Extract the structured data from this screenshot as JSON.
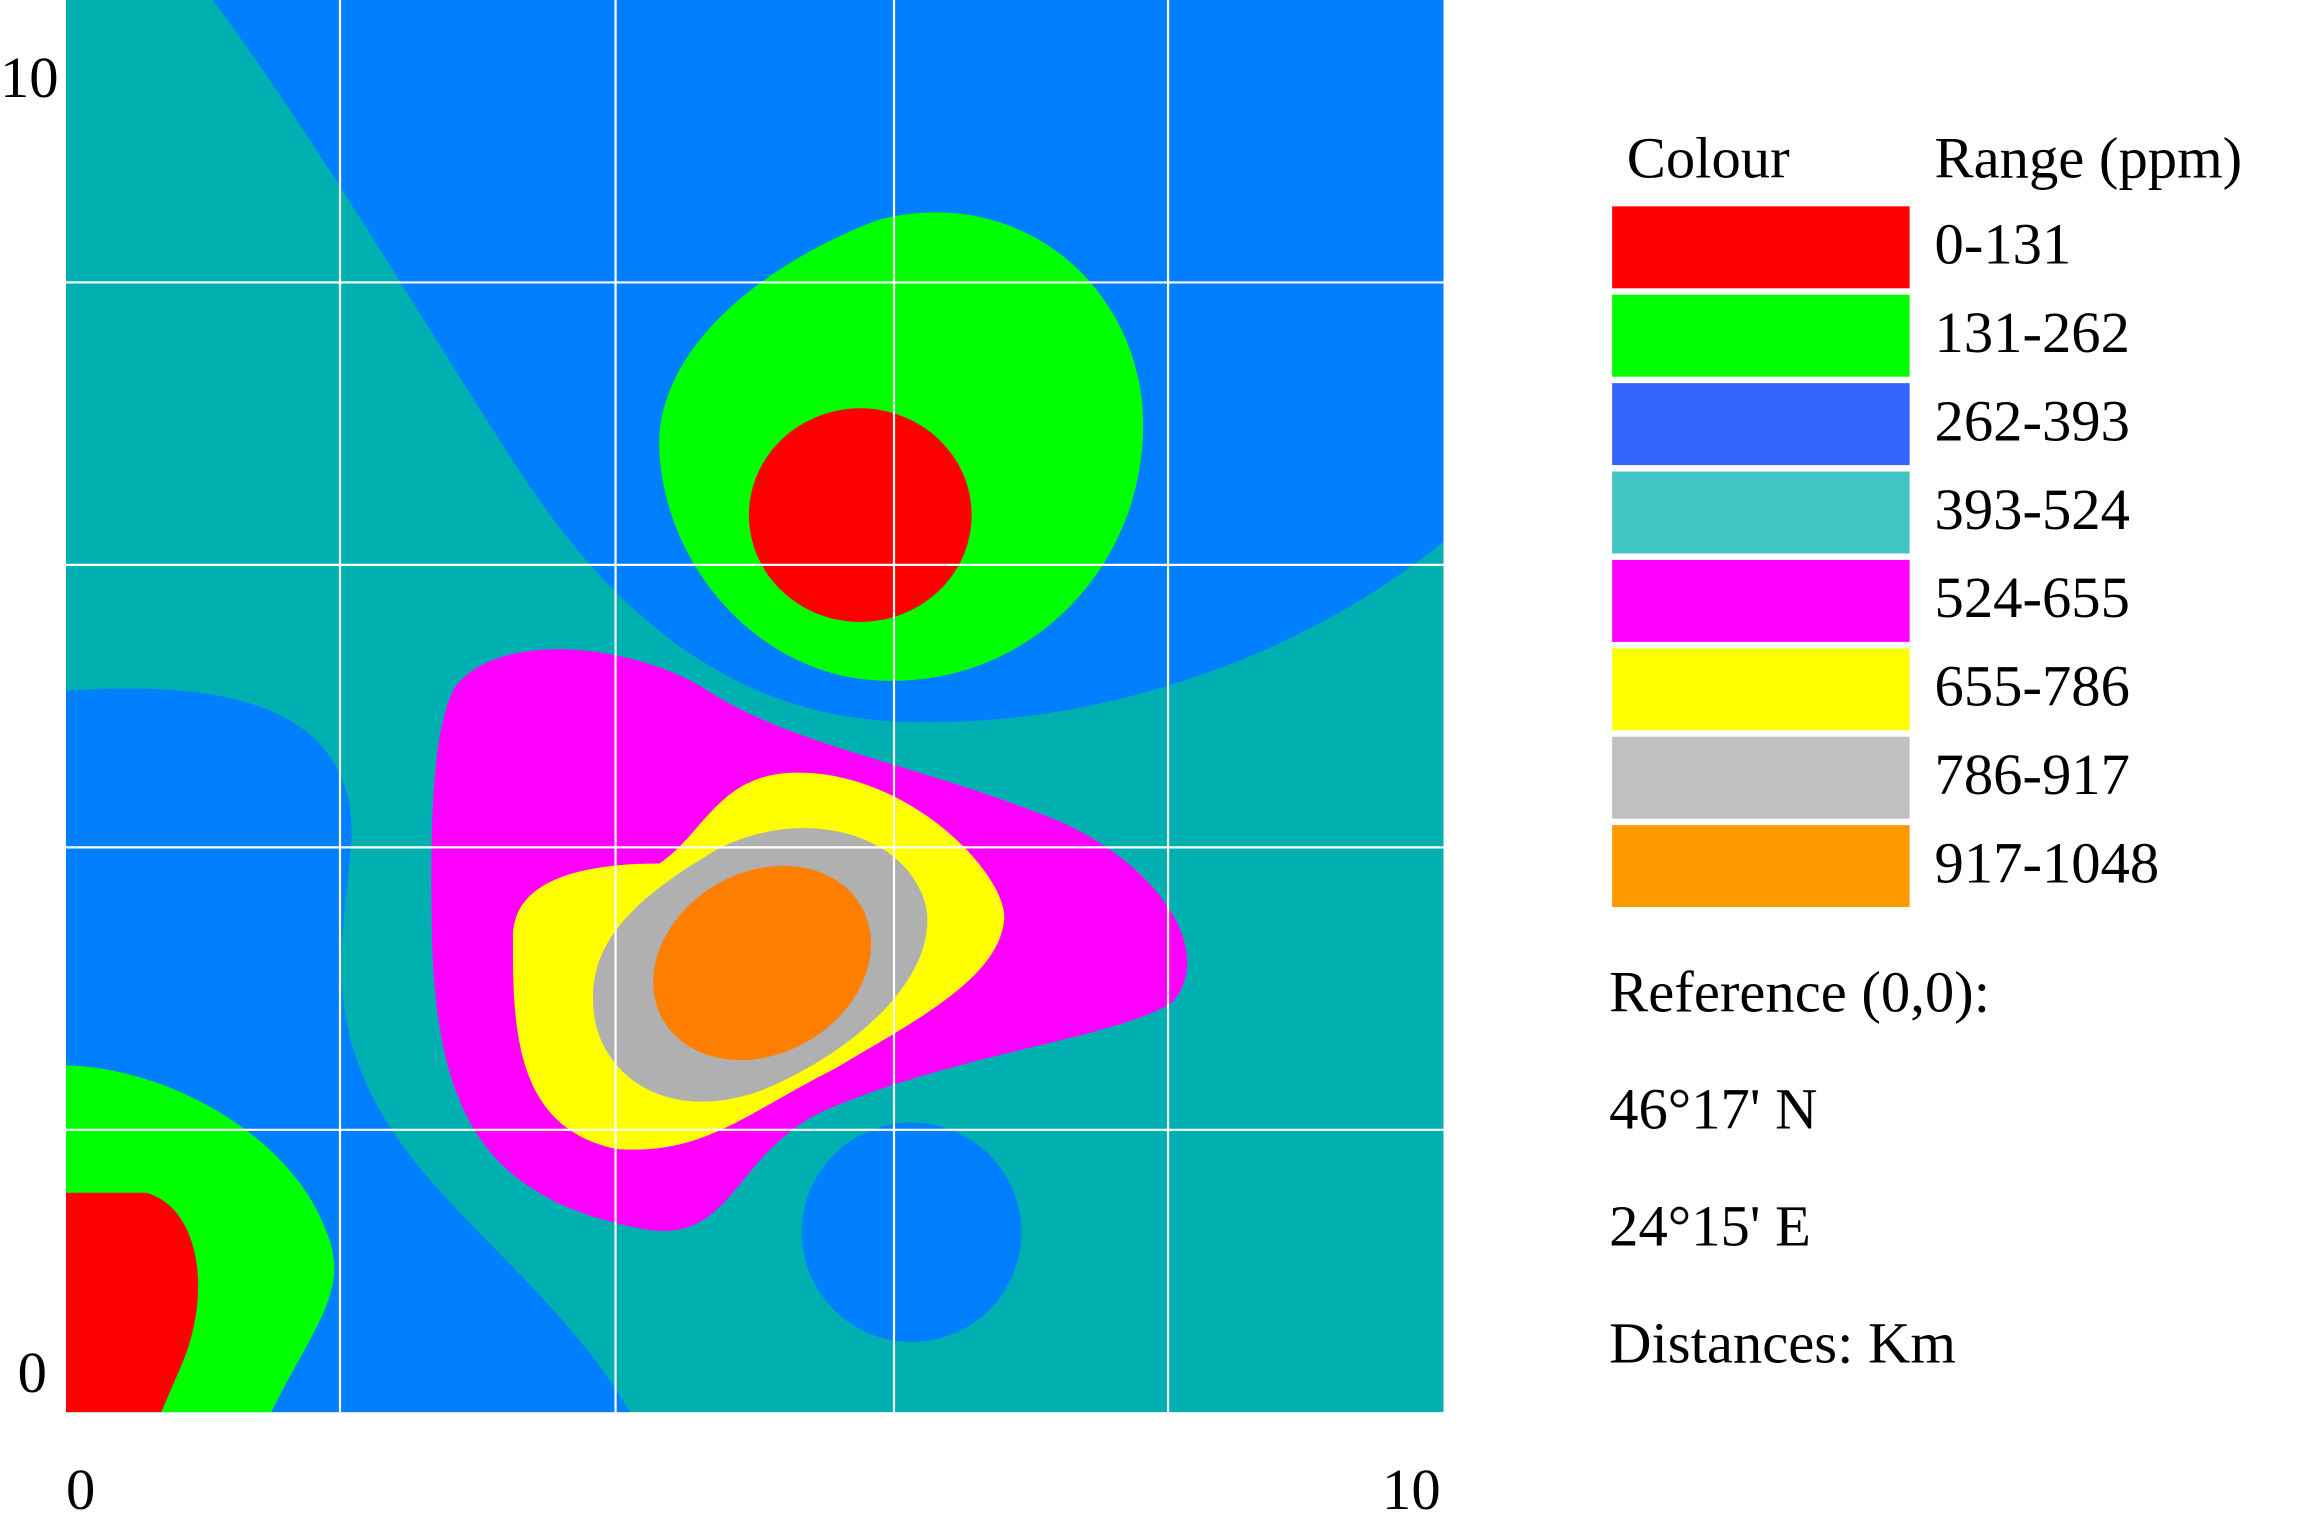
{
  "axes": {
    "y_ticks": [
      "10",
      "0"
    ],
    "x_ticks": [
      "0",
      "10"
    ]
  },
  "legend": {
    "headers": [
      "Colour",
      "Range (ppm)"
    ],
    "items": [
      {
        "color": "#ff0000",
        "range": "0-131"
      },
      {
        "color": "#00ff00",
        "range": "131-262"
      },
      {
        "color": "#3366ff",
        "range": "262-393"
      },
      {
        "color": "#40c4c4",
        "range": "393-524"
      },
      {
        "color": "#ff00ff",
        "range": "524-655"
      },
      {
        "color": "#ffff00",
        "range": "655-786"
      },
      {
        "color": "#c0c0c0",
        "range": "786-917"
      },
      {
        "color": "#ff9900",
        "range": "917-1048"
      }
    ]
  },
  "notes": [
    "Reference (0,0):",
    "46°17' N",
    "24°15' E",
    "Distances: Km"
  ]
}
